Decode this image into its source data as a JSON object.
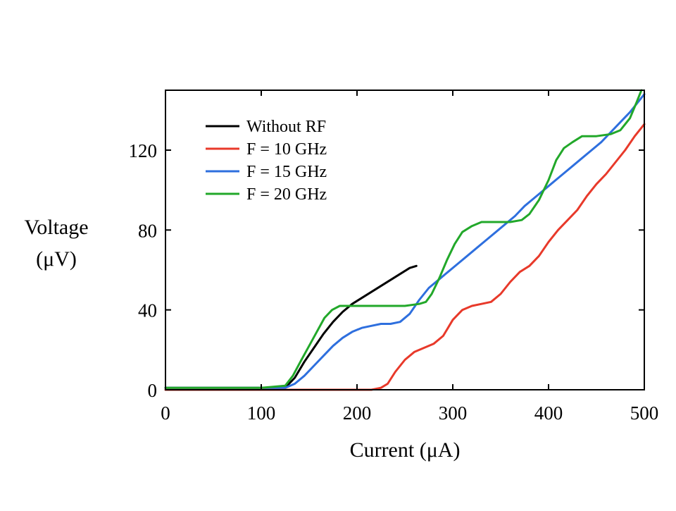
{
  "chart_data": {
    "type": "line",
    "xlabel": "Current (μA)",
    "ylabel_lines": [
      "Voltage",
      "(μV)"
    ],
    "xlim": [
      0,
      500
    ],
    "ylim": [
      0,
      150
    ],
    "x_ticks": [
      0,
      100,
      200,
      300,
      400,
      500
    ],
    "y_ticks": [
      0,
      40,
      80,
      120
    ],
    "legend_position": "top-left",
    "grid": false,
    "series": [
      {
        "name": "Without RF",
        "color": "#000000",
        "points": [
          [
            0,
            1
          ],
          [
            50,
            1
          ],
          [
            100,
            1
          ],
          [
            125,
            1
          ],
          [
            135,
            6
          ],
          [
            145,
            14
          ],
          [
            155,
            21
          ],
          [
            165,
            28
          ],
          [
            175,
            34
          ],
          [
            185,
            39
          ],
          [
            195,
            43
          ],
          [
            205,
            46
          ],
          [
            215,
            49
          ],
          [
            225,
            52
          ],
          [
            235,
            55
          ],
          [
            245,
            58
          ],
          [
            255,
            61
          ],
          [
            262,
            62
          ]
        ]
      },
      {
        "name": "F = 10 GHz",
        "color": "#e8392a",
        "points": [
          [
            0,
            0
          ],
          [
            100,
            0
          ],
          [
            150,
            0
          ],
          [
            200,
            0
          ],
          [
            215,
            0
          ],
          [
            225,
            1
          ],
          [
            232,
            3
          ],
          [
            240,
            9
          ],
          [
            250,
            15
          ],
          [
            260,
            19
          ],
          [
            270,
            21
          ],
          [
            280,
            23
          ],
          [
            290,
            27
          ],
          [
            300,
            35
          ],
          [
            310,
            40
          ],
          [
            320,
            42
          ],
          [
            330,
            43
          ],
          [
            340,
            44
          ],
          [
            350,
            48
          ],
          [
            360,
            54
          ],
          [
            370,
            59
          ],
          [
            380,
            62
          ],
          [
            390,
            67
          ],
          [
            400,
            74
          ],
          [
            410,
            80
          ],
          [
            420,
            85
          ],
          [
            430,
            90
          ],
          [
            440,
            97
          ],
          [
            450,
            103
          ],
          [
            460,
            108
          ],
          [
            470,
            114
          ],
          [
            480,
            120
          ],
          [
            490,
            127
          ],
          [
            500,
            133
          ]
        ]
      },
      {
        "name": "F = 15 GHz",
        "color": "#2e6fde",
        "points": [
          [
            0,
            1
          ],
          [
            50,
            1
          ],
          [
            100,
            1
          ],
          [
            125,
            1
          ],
          [
            135,
            3
          ],
          [
            145,
            7
          ],
          [
            155,
            12
          ],
          [
            165,
            17
          ],
          [
            175,
            22
          ],
          [
            185,
            26
          ],
          [
            195,
            29
          ],
          [
            205,
            31
          ],
          [
            215,
            32
          ],
          [
            225,
            33
          ],
          [
            235,
            33
          ],
          [
            245,
            34
          ],
          [
            255,
            38
          ],
          [
            265,
            45
          ],
          [
            275,
            51
          ],
          [
            285,
            55
          ],
          [
            295,
            59
          ],
          [
            305,
            63
          ],
          [
            315,
            67
          ],
          [
            325,
            71
          ],
          [
            335,
            75
          ],
          [
            345,
            79
          ],
          [
            355,
            83
          ],
          [
            365,
            87
          ],
          [
            375,
            92
          ],
          [
            385,
            96
          ],
          [
            395,
            100
          ],
          [
            405,
            104
          ],
          [
            415,
            108
          ],
          [
            425,
            112
          ],
          [
            435,
            116
          ],
          [
            445,
            120
          ],
          [
            455,
            124
          ],
          [
            465,
            129
          ],
          [
            475,
            134
          ],
          [
            485,
            139
          ],
          [
            495,
            145
          ],
          [
            500,
            148
          ]
        ]
      },
      {
        "name": "F = 20 GHz",
        "color": "#22a82a",
        "points": [
          [
            0,
            1
          ],
          [
            50,
            1
          ],
          [
            100,
            1
          ],
          [
            125,
            2
          ],
          [
            133,
            7
          ],
          [
            142,
            15
          ],
          [
            150,
            22
          ],
          [
            158,
            29
          ],
          [
            166,
            36
          ],
          [
            174,
            40
          ],
          [
            182,
            42
          ],
          [
            195,
            42
          ],
          [
            210,
            42
          ],
          [
            230,
            42
          ],
          [
            250,
            42
          ],
          [
            265,
            43
          ],
          [
            272,
            44
          ],
          [
            278,
            48
          ],
          [
            286,
            56
          ],
          [
            294,
            65
          ],
          [
            302,
            73
          ],
          [
            310,
            79
          ],
          [
            320,
            82
          ],
          [
            330,
            84
          ],
          [
            345,
            84
          ],
          [
            360,
            84
          ],
          [
            372,
            85
          ],
          [
            380,
            88
          ],
          [
            390,
            95
          ],
          [
            400,
            105
          ],
          [
            408,
            115
          ],
          [
            416,
            121
          ],
          [
            425,
            124
          ],
          [
            435,
            127
          ],
          [
            450,
            127
          ],
          [
            465,
            128
          ],
          [
            475,
            130
          ],
          [
            485,
            136
          ],
          [
            492,
            144
          ],
          [
            497,
            150
          ]
        ]
      }
    ]
  }
}
